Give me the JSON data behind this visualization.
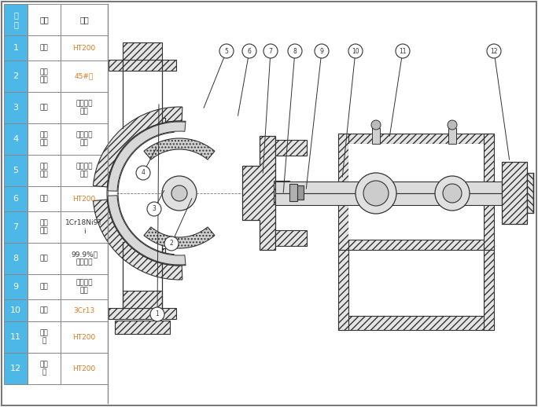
{
  "bg_color": "#ffffff",
  "header_bg": "#4db8e8",
  "cell_bg": "#ffffff",
  "fig_w": 6.84,
  "fig_h": 5.18,
  "header": [
    "序号",
    "名称",
    "材质"
  ],
  "rows": [
    [
      "1",
      "泵体",
      "HT200"
    ],
    [
      "2",
      "叶轮\n骨架",
      "45#钉"
    ],
    [
      "3",
      "叶轮",
      "聚全氟乙\n丙烯"
    ],
    [
      "4",
      "泵体\n村里",
      "聚全氟乙\n丙烯"
    ],
    [
      "5",
      "泵盖\n村里",
      "聚全氟乙\n丙烯"
    ],
    [
      "6",
      "泵盖",
      "HT200"
    ],
    [
      "7",
      "机封\n压盖",
      "1Cr18Ni9T\ni"
    ],
    [
      "8",
      "静环",
      "99.9%氧\n化铝陶瓷"
    ],
    [
      "9",
      "动环",
      "填充四氟\n乙烯"
    ],
    [
      "10",
      "泵轴",
      "3Cr13"
    ],
    [
      "11",
      "轴承\n体",
      "HT200"
    ],
    [
      "12",
      "联轴\n器",
      "HT200"
    ]
  ],
  "orange_mats": [
    "HT200",
    "45#钉",
    "3Cr13"
  ],
  "outer_border_color": "#aaaaaa",
  "callout_data": [
    [
      1,
      200,
      118,
      202,
      388
    ],
    [
      2,
      218,
      208,
      245,
      268
    ],
    [
      3,
      196,
      252,
      210,
      278
    ],
    [
      4,
      182,
      298,
      200,
      332
    ],
    [
      5,
      288,
      453,
      258,
      378
    ],
    [
      6,
      317,
      453,
      302,
      368
    ],
    [
      7,
      344,
      453,
      334,
      295
    ],
    [
      8,
      375,
      453,
      360,
      270
    ],
    [
      9,
      409,
      453,
      389,
      275
    ],
    [
      10,
      452,
      453,
      435,
      290
    ],
    [
      11,
      512,
      453,
      495,
      342
    ],
    [
      12,
      628,
      453,
      648,
      312
    ]
  ]
}
